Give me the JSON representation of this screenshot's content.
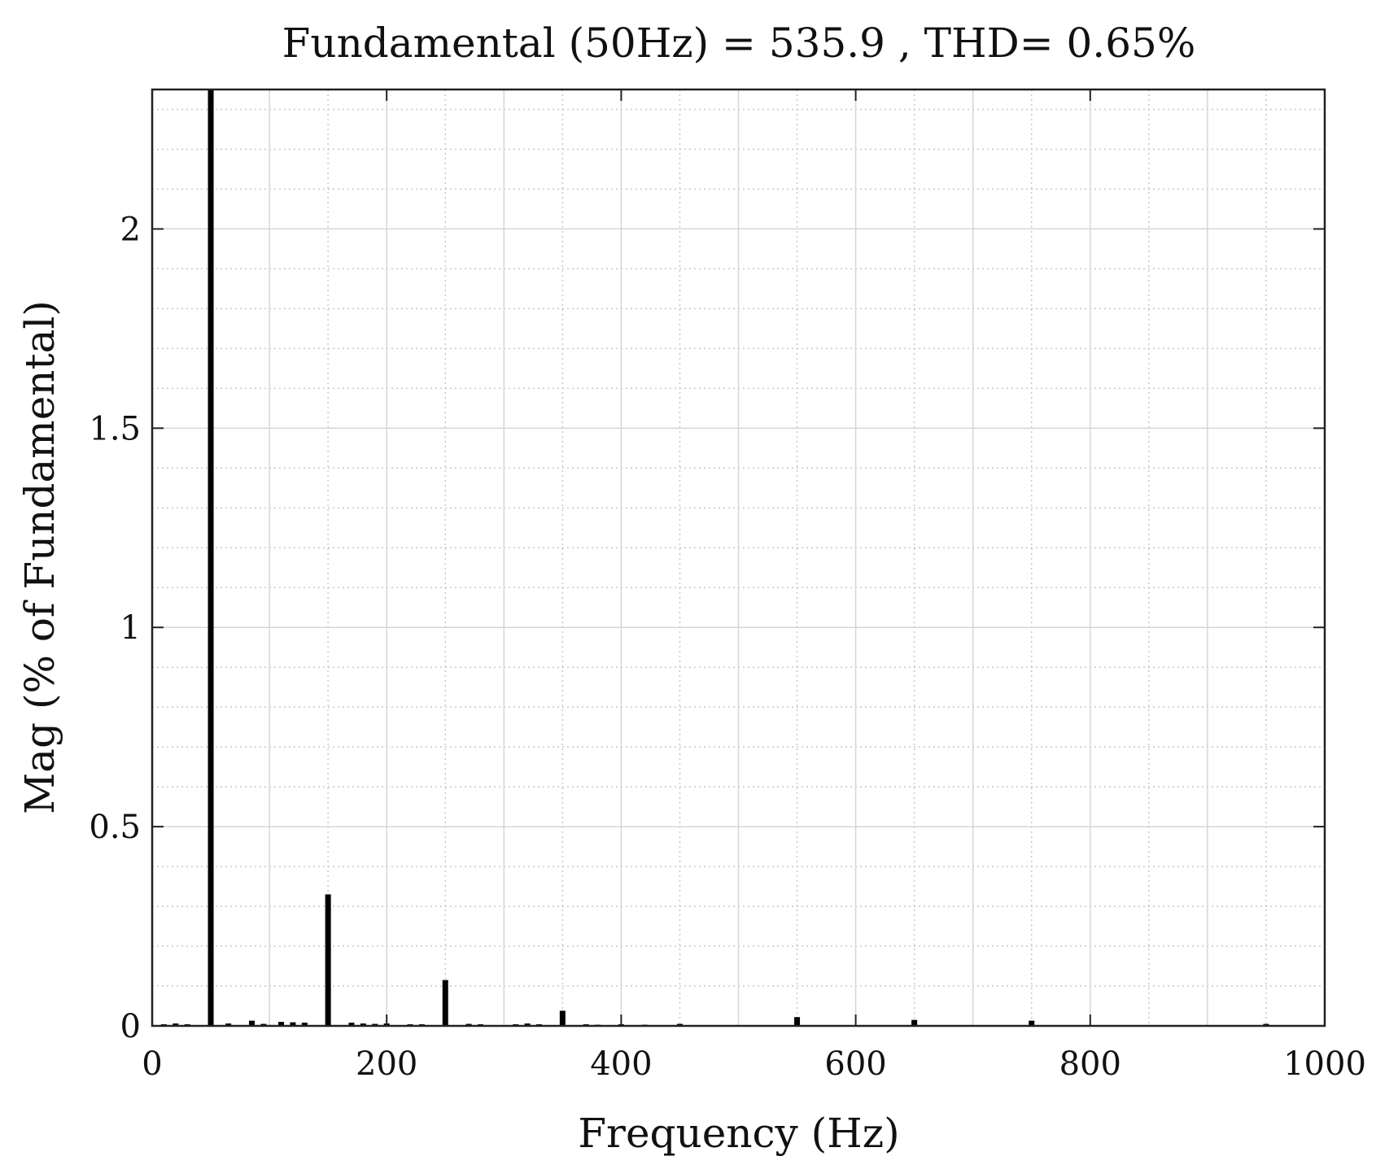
{
  "chart_data": {
    "type": "bar",
    "title": "Fundamental (50Hz) = 535.9 , THD= 0.65%",
    "xlabel": "Frequency (Hz)",
    "ylabel": "Mag (% of Fundamental)",
    "xlim": [
      0,
      1000
    ],
    "ylim": [
      0,
      2.35
    ],
    "xticks": [
      0,
      200,
      400,
      600,
      800,
      1000
    ],
    "yticks": [
      0,
      0.5,
      1,
      1.5,
      2
    ],
    "xtick_labels": [
      "0",
      "200",
      "400",
      "600",
      "800",
      "1000"
    ],
    "ytick_labels": [
      "0",
      "0.5",
      "1",
      "1.5",
      "2"
    ],
    "grid": true,
    "minor_grid": true,
    "bar_color": "#000000",
    "x": [
      10,
      20,
      30,
      50,
      65,
      85,
      95,
      110,
      120,
      130,
      150,
      170,
      180,
      190,
      200,
      220,
      230,
      250,
      270,
      280,
      310,
      320,
      330,
      350,
      370,
      380,
      400,
      420,
      450,
      550,
      650,
      750,
      950
    ],
    "values": [
      0.004,
      0.006,
      0.004,
      2.36,
      0.006,
      0.013,
      0.005,
      0.01,
      0.009,
      0.008,
      0.33,
      0.008,
      0.006,
      0.005,
      0.006,
      0.004,
      0.004,
      0.115,
      0.005,
      0.004,
      0.004,
      0.006,
      0.004,
      0.038,
      0.004,
      0.003,
      0.004,
      0.003,
      0.005,
      0.022,
      0.015,
      0.013,
      0.005
    ]
  }
}
